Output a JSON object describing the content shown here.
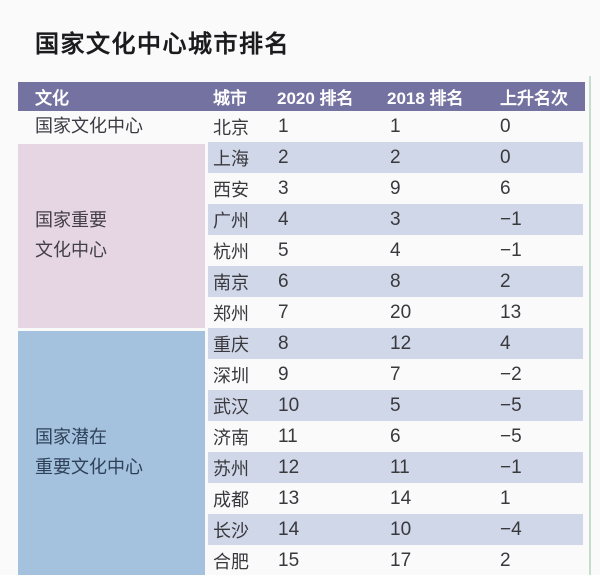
{
  "page": {
    "title": "国家文化中心城市排名"
  },
  "table": {
    "headers": [
      "文化",
      "城市",
      "2020 排名",
      "2018 排名",
      "上升名次"
    ],
    "categories": [
      {
        "name": "国家文化中心",
        "lines": [
          "国家文化中心"
        ],
        "row_span": 1,
        "bg": "transparent"
      },
      {
        "name": "国家重要文化中心",
        "lines": [
          "国家重要",
          "文化中心"
        ],
        "row_span": 6,
        "bg": "#e6d6e4"
      },
      {
        "name": "国家潜在重要文化中心",
        "lines": [
          "国家潜在",
          "重要文化中心"
        ],
        "row_span": 8,
        "bg": "#a4c2de"
      }
    ],
    "rows": [
      {
        "city": "北京",
        "r2020": "1",
        "r2018": "1",
        "change": "0"
      },
      {
        "city": "上海",
        "r2020": "2",
        "r2018": "2",
        "change": "0"
      },
      {
        "city": "西安",
        "r2020": "3",
        "r2018": "9",
        "change": "6"
      },
      {
        "city": "广州",
        "r2020": "4",
        "r2018": "3",
        "change": "−1"
      },
      {
        "city": "杭州",
        "r2020": "5",
        "r2018": "4",
        "change": "−1"
      },
      {
        "city": "南京",
        "r2020": "6",
        "r2018": "8",
        "change": "2"
      },
      {
        "city": "郑州",
        "r2020": "7",
        "r2018": "20",
        "change": "13"
      },
      {
        "city": "重庆",
        "r2020": "8",
        "r2018": "12",
        "change": "4"
      },
      {
        "city": "深圳",
        "r2020": "9",
        "r2018": "7",
        "change": "−2"
      },
      {
        "city": "武汉",
        "r2020": "10",
        "r2018": "5",
        "change": "−5"
      },
      {
        "city": "济南",
        "r2020": "11",
        "r2018": "6",
        "change": "−5"
      },
      {
        "city": "苏州",
        "r2020": "12",
        "r2018": "11",
        "change": "−1"
      },
      {
        "city": "成都",
        "r2020": "13",
        "r2018": "14",
        "change": "1"
      },
      {
        "city": "长沙",
        "r2020": "14",
        "r2018": "10",
        "change": "−4"
      },
      {
        "city": "合肥",
        "r2020": "15",
        "r2018": "17",
        "change": "2"
      }
    ],
    "colors": {
      "header_bg": "#7472a0",
      "header_text": "#ffffff",
      "stripe_bg": "#d0d7e9",
      "category_pink_bg": "#e6d6e4",
      "category_blue_bg": "#a4c2de",
      "right_edge_line": "#c6dccd"
    }
  },
  "chart_data": {
    "type": "table",
    "title": "国家文化中心城市排名",
    "columns": [
      "文化",
      "城市",
      "2020排名",
      "2018排名",
      "上升名次"
    ],
    "rows": [
      [
        "国家文化中心",
        "北京",
        1,
        1,
        0
      ],
      [
        "国家重要文化中心",
        "上海",
        2,
        2,
        0
      ],
      [
        "国家重要文化中心",
        "西安",
        3,
        9,
        6
      ],
      [
        "国家重要文化中心",
        "广州",
        4,
        3,
        -1
      ],
      [
        "国家重要文化中心",
        "杭州",
        5,
        4,
        -1
      ],
      [
        "国家重要文化中心",
        "南京",
        6,
        8,
        2
      ],
      [
        "国家重要文化中心",
        "郑州",
        7,
        20,
        13
      ],
      [
        "国家潜在重要文化中心",
        "重庆",
        8,
        12,
        4
      ],
      [
        "国家潜在重要文化中心",
        "深圳",
        9,
        7,
        -2
      ],
      [
        "国家潜在重要文化中心",
        "武汉",
        10,
        5,
        -5
      ],
      [
        "国家潜在重要文化中心",
        "济南",
        11,
        6,
        -5
      ],
      [
        "国家潜在重要文化中心",
        "苏州",
        12,
        11,
        -1
      ],
      [
        "国家潜在重要文化中心",
        "成都",
        13,
        14,
        1
      ],
      [
        "国家潜在重要文化中心",
        "长沙",
        14,
        10,
        -4
      ],
      [
        "国家潜在重要文化中心",
        "合肥",
        15,
        17,
        2
      ]
    ]
  }
}
